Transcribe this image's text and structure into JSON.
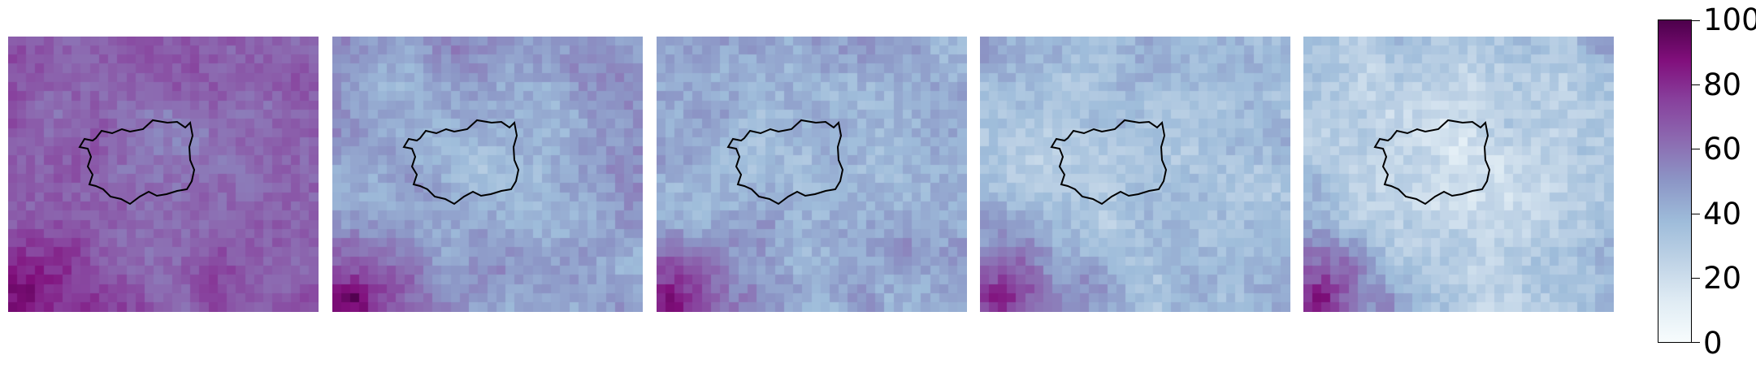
{
  "figure": {
    "panel_count": 5,
    "colormap": {
      "name": "BuPu",
      "stops": [
        "#f7fcfd",
        "#e0ecf4",
        "#bfd3e6",
        "#9ebcda",
        "#8c96c6",
        "#8c6bb1",
        "#88419d",
        "#810f7c",
        "#4d004b"
      ]
    },
    "colorbar": {
      "min": 0,
      "max": 100,
      "ticks": [
        {
          "value": 0,
          "label": "0"
        },
        {
          "value": 20,
          "label": "20"
        },
        {
          "value": 40,
          "label": "40"
        },
        {
          "value": 60,
          "label": "60"
        },
        {
          "value": 80,
          "label": "80"
        },
        {
          "value": 100,
          "label": "100"
        }
      ]
    },
    "panels": [
      {
        "id": "panel-1",
        "mean_value": 68,
        "southwest_hotspot": 96,
        "noise": 10
      },
      {
        "id": "panel-2",
        "mean_value": 48,
        "southwest_hotspot": 92,
        "noise": 11
      },
      {
        "id": "panel-3",
        "mean_value": 45,
        "southwest_hotspot": 90,
        "noise": 12
      },
      {
        "id": "panel-4",
        "mean_value": 38,
        "southwest_hotspot": 88,
        "noise": 12
      },
      {
        "id": "panel-5",
        "mean_value": 32,
        "southwest_hotspot": 90,
        "noise": 13
      }
    ],
    "boundary_color": "#000000"
  }
}
